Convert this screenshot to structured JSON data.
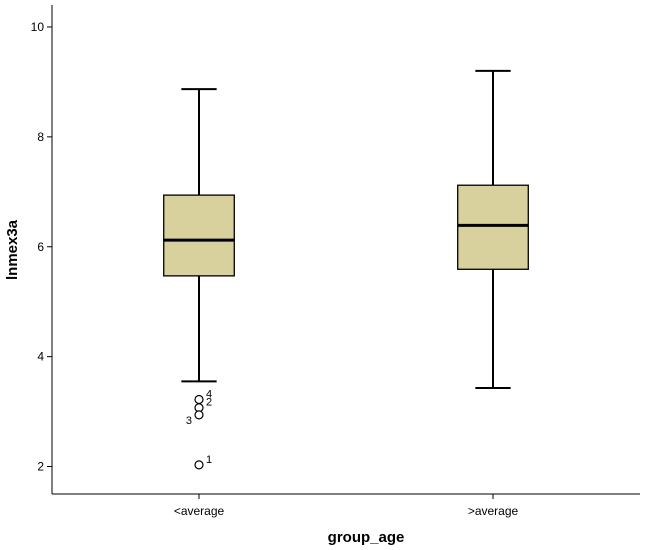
{
  "chart_data": {
    "type": "boxplot",
    "xlabel": "group_age",
    "ylabel": "lnmex3a",
    "ylim": [
      1.5,
      10.4
    ],
    "yticks": [
      2,
      4,
      6,
      8,
      10
    ],
    "grid": false,
    "categories": [
      "<average",
      ">average"
    ],
    "box_color": "#d8d19e",
    "boxes": [
      {
        "category": "<average",
        "whisker_low": 3.55,
        "q1": 5.47,
        "median": 6.12,
        "q3": 6.94,
        "whisker_high": 8.87,
        "outliers": [
          {
            "label": "4",
            "value": 3.22
          },
          {
            "label": "2",
            "value": 3.07
          },
          {
            "label": "3",
            "value": 2.94
          },
          {
            "label": "1",
            "value": 2.03
          }
        ]
      },
      {
        "category": ">average",
        "whisker_low": 3.43,
        "q1": 5.59,
        "median": 6.39,
        "q3": 7.12,
        "whisker_high": 9.2,
        "outliers": []
      }
    ]
  }
}
